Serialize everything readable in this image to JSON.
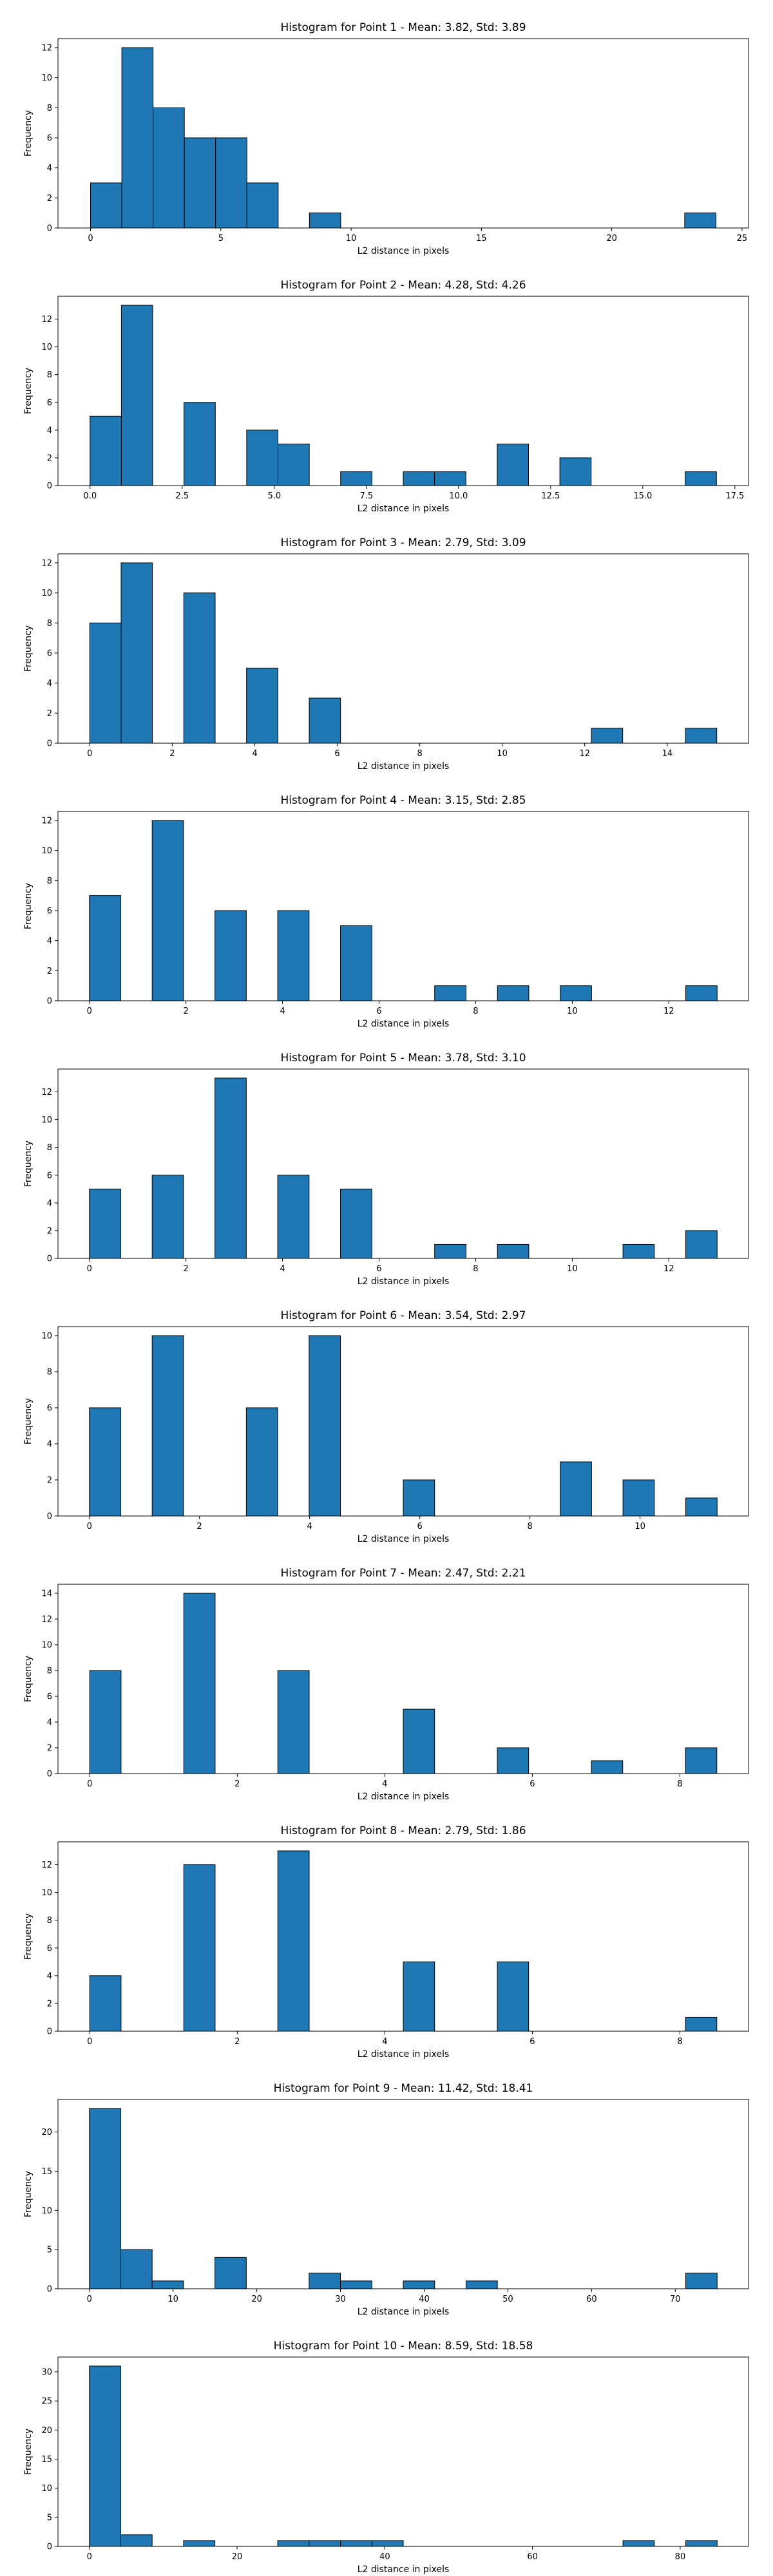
{
  "chart_data": [
    {
      "type": "bar",
      "title": "Histogram for Point 1 - Mean: 3.82, Std: 3.89",
      "xlabel": "L2 distance in pixels",
      "ylabel": "Frequency",
      "xlim": [
        -1.25,
        25.25
      ],
      "ylim": [
        0,
        12.6
      ],
      "xticks": [
        0,
        5,
        10,
        15,
        20,
        25
      ],
      "yticks": [
        0,
        2,
        4,
        6,
        8,
        10,
        12
      ],
      "bins": [
        [
          0,
          1.2,
          3
        ],
        [
          1.2,
          2.4,
          12
        ],
        [
          2.4,
          3.6,
          8
        ],
        [
          3.6,
          4.8,
          6
        ],
        [
          4.8,
          6,
          6
        ],
        [
          6,
          7.2,
          3
        ],
        [
          8.4,
          9.6,
          1
        ],
        [
          22.8,
          24,
          1
        ]
      ]
    },
    {
      "type": "bar",
      "title": "Histogram for Point 2 - Mean: 4.28, Std: 4.26",
      "xlabel": "L2 distance in pixels",
      "ylabel": "Frequency",
      "xlim": [
        -0.87,
        17.87
      ],
      "ylim": [
        0,
        13.65
      ],
      "xticks": [
        0,
        2.5,
        5,
        7.5,
        10,
        12.5,
        15,
        17.5
      ],
      "ytickfmt": "decimal",
      "yticks": [
        0,
        2,
        4,
        6,
        8,
        10,
        12
      ],
      "bins": [
        [
          0,
          0.85,
          5
        ],
        [
          0.85,
          1.7,
          13
        ],
        [
          2.55,
          3.4,
          6
        ],
        [
          4.25,
          5.1,
          4
        ],
        [
          5.1,
          5.95,
          3
        ],
        [
          6.8,
          7.65,
          1
        ],
        [
          8.5,
          9.35,
          1
        ],
        [
          9.35,
          10.2,
          1
        ],
        [
          11.05,
          11.9,
          3
        ],
        [
          12.75,
          13.6,
          2
        ],
        [
          16.15,
          17,
          1
        ]
      ]
    },
    {
      "type": "bar",
      "title": "Histogram for Point 3 - Mean: 2.79, Std: 3.09",
      "xlabel": "L2 distance in pixels",
      "ylabel": "Frequency",
      "xlim": [
        -0.77,
        15.97
      ],
      "ylim": [
        0,
        12.6
      ],
      "xticks": [
        0,
        2,
        4,
        6,
        8,
        10,
        12,
        14
      ],
      "yticks": [
        0,
        2,
        4,
        6,
        8,
        10,
        12
      ],
      "bins": [
        [
          0,
          0.76,
          8
        ],
        [
          0.76,
          1.52,
          12
        ],
        [
          2.28,
          3.04,
          10
        ],
        [
          3.8,
          4.56,
          5
        ],
        [
          5.32,
          6.08,
          3
        ],
        [
          12.16,
          12.92,
          1
        ],
        [
          14.44,
          15.2,
          1
        ]
      ]
    },
    {
      "type": "bar",
      "title": "Histogram for Point 4 - Mean: 3.15, Std: 2.85",
      "xlabel": "L2 distance in pixels",
      "ylabel": "Frequency",
      "xlim": [
        -0.65,
        13.65
      ],
      "ylim": [
        0,
        12.6
      ],
      "xticks": [
        0,
        2,
        4,
        6,
        8,
        10,
        12
      ],
      "yticks": [
        0,
        2,
        4,
        6,
        8,
        10,
        12
      ],
      "bins": [
        [
          0,
          0.65,
          7
        ],
        [
          1.3,
          1.95,
          12
        ],
        [
          2.6,
          3.25,
          6
        ],
        [
          3.9,
          4.55,
          6
        ],
        [
          5.2,
          5.85,
          5
        ],
        [
          7.15,
          7.8,
          1
        ],
        [
          8.45,
          9.1,
          1
        ],
        [
          9.75,
          10.4,
          1
        ],
        [
          12.35,
          13,
          1
        ]
      ]
    },
    {
      "type": "bar",
      "title": "Histogram for Point 5 - Mean: 3.78, Std: 3.10",
      "xlabel": "L2 distance in pixels",
      "ylabel": "Frequency",
      "xlim": [
        -0.65,
        13.65
      ],
      "ylim": [
        0,
        13.65
      ],
      "xticks": [
        0,
        2,
        4,
        6,
        8,
        10,
        12
      ],
      "yticks": [
        0,
        2,
        4,
        6,
        8,
        10,
        12
      ],
      "bins": [
        [
          0,
          0.65,
          5
        ],
        [
          1.3,
          1.95,
          6
        ],
        [
          2.6,
          3.25,
          13
        ],
        [
          3.9,
          4.55,
          6
        ],
        [
          5.2,
          5.85,
          5
        ],
        [
          7.15,
          7.8,
          1
        ],
        [
          8.45,
          9.1,
          1
        ],
        [
          11.05,
          11.7,
          1
        ],
        [
          12.35,
          13,
          2
        ]
      ]
    },
    {
      "type": "bar",
      "title": "Histogram for Point 6 - Mean: 3.54, Std: 2.97",
      "xlabel": "L2 distance in pixels",
      "ylabel": "Frequency",
      "xlim": [
        -0.57,
        11.97
      ],
      "ylim": [
        0,
        10.5
      ],
      "xticks": [
        0,
        2,
        4,
        6,
        8,
        10
      ],
      "yticks": [
        0,
        2,
        4,
        6,
        8,
        10
      ],
      "bins": [
        [
          0,
          0.57,
          6
        ],
        [
          1.14,
          1.71,
          10
        ],
        [
          2.85,
          3.42,
          6
        ],
        [
          3.99,
          4.56,
          10
        ],
        [
          5.7,
          6.27,
          2
        ],
        [
          8.55,
          9.12,
          3
        ],
        [
          9.69,
          10.26,
          2
        ],
        [
          10.83,
          11.4,
          1
        ]
      ]
    },
    {
      "type": "bar",
      "title": "Histogram for Point 7 - Mean: 2.47, Std: 2.21",
      "xlabel": "L2 distance in pixels",
      "ylabel": "Frequency",
      "xlim": [
        -0.43,
        8.93
      ],
      "ylim": [
        0,
        14.7
      ],
      "xticks": [
        0,
        2,
        4,
        6,
        8
      ],
      "yticks": [
        0,
        2,
        4,
        6,
        8,
        10,
        12,
        14
      ],
      "bins": [
        [
          0,
          0.425,
          8
        ],
        [
          1.275,
          1.7,
          14
        ],
        [
          2.55,
          2.975,
          8
        ],
        [
          4.25,
          4.675,
          5
        ],
        [
          5.525,
          5.95,
          2
        ],
        [
          6.8,
          7.225,
          1
        ],
        [
          8.075,
          8.5,
          2
        ]
      ]
    },
    {
      "type": "bar",
      "title": "Histogram for Point 8 - Mean: 2.79, Std: 1.86",
      "xlabel": "L2 distance in pixels",
      "ylabel": "Frequency",
      "xlim": [
        -0.43,
        8.93
      ],
      "ylim": [
        0,
        13.65
      ],
      "xticks": [
        0,
        2,
        4,
        6,
        8
      ],
      "yticks": [
        0,
        2,
        4,
        6,
        8,
        10,
        12
      ],
      "bins": [
        [
          0,
          0.425,
          4
        ],
        [
          1.275,
          1.7,
          12
        ],
        [
          2.55,
          2.975,
          13
        ],
        [
          4.25,
          4.675,
          5
        ],
        [
          5.525,
          5.95,
          5
        ],
        [
          8.075,
          8.5,
          1
        ]
      ]
    },
    {
      "type": "bar",
      "title": "Histogram for Point 9 - Mean: 11.42, Std: 18.41",
      "xlabel": "L2 distance in pixels",
      "ylabel": "Frequency",
      "xlim": [
        -3.75,
        78.75
      ],
      "ylim": [
        0,
        24.15
      ],
      "xticks": [
        0,
        10,
        20,
        30,
        40,
        50,
        60,
        70
      ],
      "yticks": [
        0,
        5,
        10,
        15,
        20
      ],
      "bins": [
        [
          0,
          3.75,
          23
        ],
        [
          3.75,
          7.5,
          5
        ],
        [
          7.5,
          11.25,
          1
        ],
        [
          15,
          18.75,
          4
        ],
        [
          26.25,
          30,
          2
        ],
        [
          30,
          33.75,
          1
        ],
        [
          37.5,
          41.25,
          1
        ],
        [
          45,
          48.75,
          1
        ],
        [
          71.25,
          75,
          2
        ]
      ]
    },
    {
      "type": "bar",
      "title": "Histogram for Point 10 - Mean: 8.59, Std: 18.58",
      "xlabel": "L2 distance in pixels",
      "ylabel": "Frequency",
      "xlim": [
        -4.25,
        89.25
      ],
      "ylim": [
        0,
        32.55
      ],
      "xticks": [
        0,
        20,
        40,
        60,
        80
      ],
      "yticks": [
        0,
        5,
        10,
        15,
        20,
        25,
        30
      ],
      "bins": [
        [
          0,
          4.25,
          31
        ],
        [
          4.25,
          8.5,
          2
        ],
        [
          12.75,
          17,
          1
        ],
        [
          25.5,
          29.75,
          1
        ],
        [
          29.75,
          34,
          1
        ],
        [
          34,
          38.25,
          1
        ],
        [
          38.25,
          42.5,
          1
        ],
        [
          72.25,
          76.5,
          1
        ],
        [
          80.75,
          85,
          1
        ]
      ]
    }
  ]
}
